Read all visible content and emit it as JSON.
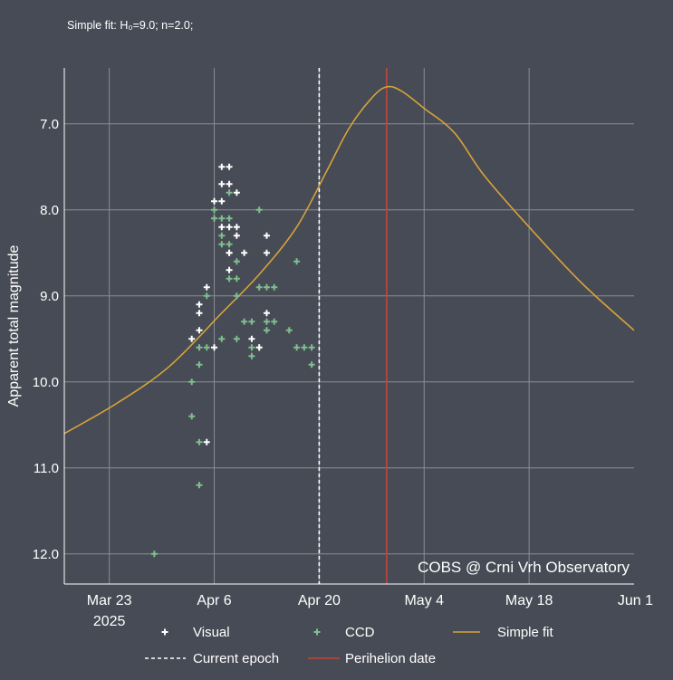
{
  "chart_data": {
    "type": "scatter",
    "subtitle": "Simple fit: H₀=9.0; n=2.0;",
    "ylabel": "Apparent total magnitude",
    "credit": "COBS @ Crni Vrh Observatory",
    "y_inverted": true,
    "ylim": [
      12.35,
      6.35
    ],
    "xlim": [
      "2025-03-17",
      "2025-06-01"
    ],
    "y_ticks": [
      "7.0",
      "8.0",
      "9.0",
      "10.0",
      "11.0",
      "12.0"
    ],
    "x_ticks": [
      {
        "date": "2025-03-23",
        "label": "Mar 23",
        "sublabel": "2025"
      },
      {
        "date": "2025-04-06",
        "label": "Apr 6",
        "sublabel": ""
      },
      {
        "date": "2025-04-20",
        "label": "Apr 20",
        "sublabel": ""
      },
      {
        "date": "2025-05-04",
        "label": "May 4",
        "sublabel": ""
      },
      {
        "date": "2025-05-18",
        "label": "May 18",
        "sublabel": ""
      },
      {
        "date": "2025-06-01",
        "label": "Jun 1",
        "sublabel": ""
      }
    ],
    "current_epoch": "2025-04-20",
    "perihelion_date": "2025-04-29",
    "grid": true,
    "legend_placement": "bottom",
    "colors": {
      "background": "#474b55",
      "grid": "#8a8d93",
      "visual": "#ffffff",
      "ccd": "#7fbf8f",
      "fit": "#d6a33a",
      "epoch": "#ffffff",
      "perihelion": "#c0463c"
    },
    "series": [
      {
        "name": "Visual",
        "marker": "plus",
        "points": [
          [
            "2025-04-03",
            9.5
          ],
          [
            "2025-04-04",
            9.4
          ],
          [
            "2025-04-04",
            9.1
          ],
          [
            "2025-04-04",
            9.2
          ],
          [
            "2025-04-05",
            8.9
          ],
          [
            "2025-04-05",
            10.7
          ],
          [
            "2025-04-06",
            9.6
          ],
          [
            "2025-04-06",
            7.9
          ],
          [
            "2025-04-07",
            7.9
          ],
          [
            "2025-04-07",
            7.5
          ],
          [
            "2025-04-07",
            7.7
          ],
          [
            "2025-04-07",
            8.2
          ],
          [
            "2025-04-08",
            7.5
          ],
          [
            "2025-04-08",
            7.7
          ],
          [
            "2025-04-08",
            8.5
          ],
          [
            "2025-04-08",
            8.2
          ],
          [
            "2025-04-08",
            8.7
          ],
          [
            "2025-04-08",
            8.5
          ],
          [
            "2025-04-09",
            7.8
          ],
          [
            "2025-04-09",
            8.2
          ],
          [
            "2025-04-09",
            8.3
          ],
          [
            "2025-04-10",
            8.5
          ],
          [
            "2025-04-11",
            9.5
          ],
          [
            "2025-04-12",
            9.6
          ],
          [
            "2025-04-13",
            8.3
          ],
          [
            "2025-04-13",
            8.5
          ],
          [
            "2025-04-13",
            9.2
          ]
        ]
      },
      {
        "name": "CCD",
        "marker": "plus",
        "points": [
          [
            "2025-03-29",
            12.0
          ],
          [
            "2025-04-03",
            10.4
          ],
          [
            "2025-04-03",
            10.0
          ],
          [
            "2025-04-04",
            9.8
          ],
          [
            "2025-04-04",
            9.6
          ],
          [
            "2025-04-04",
            10.7
          ],
          [
            "2025-04-04",
            11.2
          ],
          [
            "2025-04-05",
            9.6
          ],
          [
            "2025-04-05",
            9.0
          ],
          [
            "2025-04-06",
            8.0
          ],
          [
            "2025-04-06",
            8.1
          ],
          [
            "2025-04-07",
            8.4
          ],
          [
            "2025-04-07",
            8.1
          ],
          [
            "2025-04-07",
            8.3
          ],
          [
            "2025-04-07",
            9.5
          ],
          [
            "2025-04-08",
            8.1
          ],
          [
            "2025-04-08",
            8.4
          ],
          [
            "2025-04-08",
            8.8
          ],
          [
            "2025-04-08",
            7.8
          ],
          [
            "2025-04-09",
            8.6
          ],
          [
            "2025-04-09",
            9.0
          ],
          [
            "2025-04-09",
            8.8
          ],
          [
            "2025-04-09",
            9.5
          ],
          [
            "2025-04-10",
            9.3
          ],
          [
            "2025-04-11",
            9.3
          ],
          [
            "2025-04-11",
            9.7
          ],
          [
            "2025-04-11",
            9.6
          ],
          [
            "2025-04-12",
            8.0
          ],
          [
            "2025-04-12",
            8.9
          ],
          [
            "2025-04-12",
            9.6
          ],
          [
            "2025-04-13",
            9.3
          ],
          [
            "2025-04-13",
            9.4
          ],
          [
            "2025-04-13",
            8.9
          ],
          [
            "2025-04-14",
            9.3
          ],
          [
            "2025-04-14",
            8.9
          ],
          [
            "2025-04-16",
            9.4
          ],
          [
            "2025-04-17",
            8.6
          ],
          [
            "2025-04-17",
            9.6
          ],
          [
            "2025-04-18",
            9.6
          ],
          [
            "2025-04-19",
            9.6
          ],
          [
            "2025-04-19",
            9.8
          ]
        ]
      },
      {
        "name": "Simple fit",
        "marker": "line",
        "points": [
          [
            "2025-03-17",
            10.6
          ],
          [
            "2025-03-24",
            10.25
          ],
          [
            "2025-03-31",
            9.82
          ],
          [
            "2025-04-07",
            9.2
          ],
          [
            "2025-04-12",
            8.75
          ],
          [
            "2025-04-17",
            8.2
          ],
          [
            "2025-04-21",
            7.55
          ],
          [
            "2025-04-24",
            7.05
          ],
          [
            "2025-04-27",
            6.7
          ],
          [
            "2025-04-29",
            6.57
          ],
          [
            "2025-05-01",
            6.62
          ],
          [
            "2025-05-04",
            6.82
          ],
          [
            "2025-05-08",
            7.1
          ],
          [
            "2025-05-12",
            7.6
          ],
          [
            "2025-05-18",
            8.2
          ],
          [
            "2025-05-25",
            8.85
          ],
          [
            "2025-06-01",
            9.4
          ]
        ]
      }
    ],
    "legend": [
      {
        "label": "Visual",
        "symbol": "plus-white"
      },
      {
        "label": "CCD",
        "symbol": "plus-green"
      },
      {
        "label": "Simple fit",
        "symbol": "line-gold"
      },
      {
        "label": "Current epoch",
        "symbol": "dash-white"
      },
      {
        "label": "Perihelion date",
        "symbol": "line-red"
      }
    ]
  }
}
